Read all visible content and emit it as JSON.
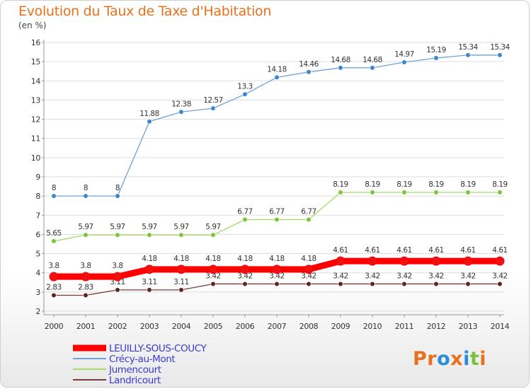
{
  "title": "Evolution du Taux de Taxe d'Habitation",
  "unit": "(en %)",
  "logo": {
    "parts": [
      "Pr",
      "o",
      "x",
      "i",
      "t",
      "i"
    ],
    "colors": [
      "#e8711e",
      "#2a8fd8",
      "#e8711e",
      "#2a8fd8",
      "#7cbf3a",
      "#e8711e"
    ]
  },
  "colors": {
    "title": "#e8711e",
    "legend_text": "#3a3ad0",
    "grid": "#dddddd",
    "axis": "#999999"
  },
  "chart_data": {
    "type": "line",
    "title": "Evolution du Taux de Taxe d'Habitation",
    "ylabel": "(en %)",
    "xlabel": "",
    "x": [
      2000,
      2001,
      2002,
      2003,
      2004,
      2005,
      2006,
      2007,
      2008,
      2009,
      2010,
      2011,
      2012,
      2013,
      2014
    ],
    "x_tick_labels": [
      "2000",
      "2001",
      "2002",
      "2003",
      "2004",
      "2005",
      "2006",
      "2007",
      "2008",
      "2009",
      "2010",
      "2011",
      "2012",
      "2013",
      "2014"
    ],
    "ylim": [
      2,
      16
    ],
    "y_ticks": [
      2,
      3,
      4,
      5,
      6,
      7,
      8,
      9,
      10,
      11,
      12,
      13,
      14,
      15,
      16
    ],
    "y_tick_labels": [
      "2",
      "3",
      "4",
      "5",
      "6",
      "7",
      "8",
      "9",
      "10",
      "11",
      "12",
      "13",
      "14",
      "15",
      "16"
    ],
    "grid": "horizontal",
    "legend_position": "bottom-left",
    "series": [
      {
        "name": "LEUILLY-SOUS-COUCY",
        "color": "#ff0000",
        "marker_color": "#ee1111",
        "emphasis": true,
        "values": [
          3.8,
          3.8,
          3.8,
          4.18,
          4.18,
          4.18,
          4.18,
          4.18,
          4.18,
          4.61,
          4.61,
          4.61,
          4.61,
          4.61,
          4.61
        ],
        "labels": [
          "3.8",
          "3.8",
          "3.8",
          "4.18",
          "4.18",
          "4.18",
          "4.18",
          "4.18",
          "4.18",
          "4.61",
          "4.61",
          "4.61",
          "4.61",
          "4.61",
          "4.61"
        ]
      },
      {
        "name": "Crécy-au-Mont",
        "color": "#6da3d6",
        "marker_color": "#3b86cf",
        "emphasis": false,
        "values": [
          8,
          8,
          8,
          11.88,
          12.38,
          12.57,
          13.3,
          14.18,
          14.46,
          14.68,
          14.68,
          14.97,
          15.19,
          15.34,
          15.34
        ],
        "labels": [
          "8",
          "8",
          "8",
          "11.88",
          "12.38",
          "12.57",
          "13.3",
          "14.18",
          "14.46",
          "14.68",
          "14.68",
          "14.97",
          "15.19",
          "15.34",
          "15.34"
        ]
      },
      {
        "name": "Jumencourt",
        "color": "#a6d96a",
        "marker_color": "#7cc43a",
        "emphasis": false,
        "values": [
          5.65,
          5.97,
          5.97,
          5.97,
          5.97,
          5.97,
          6.77,
          6.77,
          6.77,
          8.19,
          8.19,
          8.19,
          8.19,
          8.19,
          8.19
        ],
        "labels": [
          "5.65",
          "5.97",
          "5.97",
          "5.97",
          "5.97",
          "5.97",
          "6.77",
          "6.77",
          "6.77",
          "8.19",
          "8.19",
          "8.19",
          "8.19",
          "8.19",
          "8.19"
        ]
      },
      {
        "name": "Landricourt",
        "color": "#7a3b3b",
        "marker_color": "#5e2424",
        "emphasis": false,
        "values": [
          2.83,
          2.83,
          3.11,
          3.11,
          3.11,
          3.42,
          3.42,
          3.42,
          3.42,
          3.42,
          3.42,
          3.42,
          3.42,
          3.42,
          3.42
        ],
        "labels": [
          "2.83",
          "2.83",
          "3.11",
          "3.11",
          "3.11",
          "3.42",
          "3.42",
          "3.42",
          "3.42",
          "3.42",
          "3.42",
          "3.42",
          "3.42",
          "3.42",
          "3.42"
        ]
      }
    ]
  }
}
